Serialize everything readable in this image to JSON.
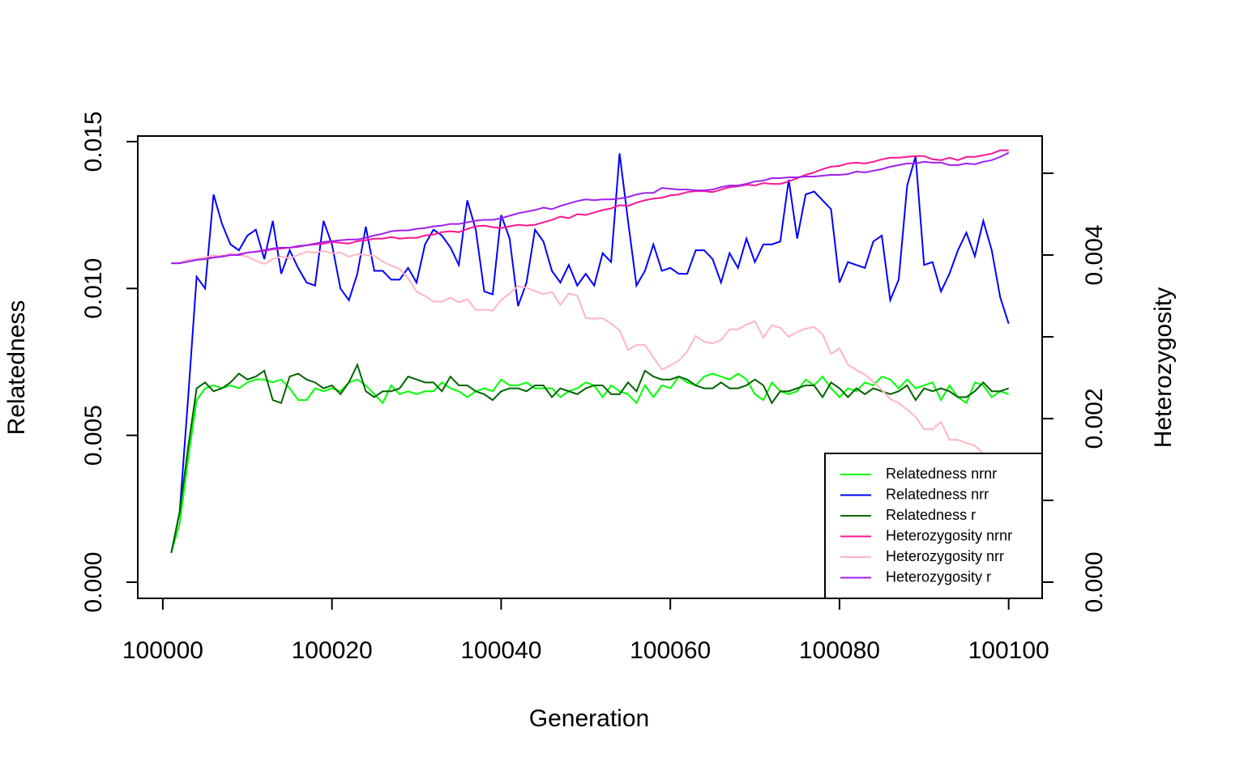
{
  "chart_data": {
    "type": "line",
    "x_label": "Generation",
    "y_label": "Relatedness",
    "y2_label": "Heterozygosity",
    "x": [
      100001,
      100002,
      100003,
      100004,
      100005,
      100006,
      100007,
      100008,
      100009,
      100010,
      100011,
      100012,
      100013,
      100014,
      100015,
      100016,
      100017,
      100018,
      100019,
      100020,
      100021,
      100022,
      100023,
      100024,
      100025,
      100026,
      100027,
      100028,
      100029,
      100030,
      100031,
      100032,
      100033,
      100034,
      100035,
      100036,
      100037,
      100038,
      100039,
      100040,
      100041,
      100042,
      100043,
      100044,
      100045,
      100046,
      100047,
      100048,
      100049,
      100050,
      100051,
      100052,
      100053,
      100054,
      100055,
      100056,
      100057,
      100058,
      100059,
      100060,
      100061,
      100062,
      100063,
      100064,
      100065,
      100066,
      100067,
      100068,
      100069,
      100070,
      100071,
      100072,
      100073,
      100074,
      100075,
      100076,
      100077,
      100078,
      100079,
      100080,
      100081,
      100082,
      100083,
      100084,
      100085,
      100086,
      100087,
      100088,
      100089,
      100090,
      100091,
      100092,
      100093,
      100094,
      100095,
      100096,
      100097,
      100098,
      100099,
      100100
    ],
    "xlim": [
      99997.04,
      100103.96
    ],
    "xticks": [
      100000,
      100020,
      100040,
      100060,
      100080,
      100100
    ],
    "ylim": [
      -0.00055,
      0.01519
    ],
    "yticks": [
      {
        "value": 0,
        "label": "0.000"
      },
      {
        "value": 0.005,
        "label": "0.005"
      },
      {
        "value": 0.01,
        "label": "0.010"
      },
      {
        "value": 0.015,
        "label": "0.015"
      }
    ],
    "y2lim": [
      -0.000198,
      0.005455
    ],
    "y2ticks": [
      {
        "value": 0,
        "label": "0.000"
      },
      {
        "value": 0.002,
        "label": "0.002"
      },
      {
        "value": 0.004,
        "label": "0.004"
      }
    ],
    "y2minor_ticks": [
      0.001,
      0.003,
      0.005
    ],
    "legend": "bottom-right",
    "series": [
      {
        "name": "Relatedness nrnr",
        "color": "#00ff00",
        "values": [
          0.001,
          0.002,
          0.0042,
          0.0062,
          0.0066,
          0.0067,
          0.0066,
          0.0067,
          0.0066,
          0.0068,
          0.0069,
          0.0069,
          0.0068,
          0.0069,
          0.0066,
          0.0062,
          0.0062,
          0.0066,
          0.0065,
          0.0066,
          0.0065,
          0.0068,
          0.0069,
          0.0067,
          0.0064,
          0.0061,
          0.0067,
          0.0064,
          0.0065,
          0.0064,
          0.0065,
          0.0065,
          0.0068,
          0.0066,
          0.0065,
          0.0063,
          0.0065,
          0.0066,
          0.0065,
          0.0069,
          0.0067,
          0.0067,
          0.0068,
          0.0066,
          0.0066,
          0.0066,
          0.0063,
          0.0065,
          0.0066,
          0.0068,
          0.0067,
          0.0063,
          0.0067,
          0.0065,
          0.0064,
          0.0061,
          0.0067,
          0.0063,
          0.0067,
          0.0066,
          0.007,
          0.0068,
          0.0067,
          0.007,
          0.0071,
          0.007,
          0.0069,
          0.0071,
          0.0069,
          0.0064,
          0.0062,
          0.0068,
          0.0065,
          0.0064,
          0.0065,
          0.0069,
          0.0067,
          0.007,
          0.0066,
          0.0063,
          0.0066,
          0.0065,
          0.0068,
          0.0067,
          0.007,
          0.0069,
          0.0066,
          0.0069,
          0.0066,
          0.0067,
          0.0068,
          0.0062,
          0.0067,
          0.0063,
          0.0061,
          0.0068,
          0.0067,
          0.0063,
          0.0065,
          0.0064
        ]
      },
      {
        "name": "Relatedness nrr",
        "color": "#0000ff",
        "values": [
          0.001,
          0.0024,
          0.0063,
          0.0104,
          0.01,
          0.0132,
          0.0122,
          0.0115,
          0.0113,
          0.0118,
          0.012,
          0.011,
          0.0123,
          0.0105,
          0.0113,
          0.0107,
          0.0102,
          0.0101,
          0.0123,
          0.0115,
          0.01,
          0.0096,
          0.0105,
          0.0121,
          0.0106,
          0.0106,
          0.0103,
          0.0103,
          0.0107,
          0.0102,
          0.0115,
          0.012,
          0.0118,
          0.0114,
          0.0108,
          0.013,
          0.012,
          0.0099,
          0.0098,
          0.0125,
          0.0117,
          0.0094,
          0.0102,
          0.012,
          0.0116,
          0.0106,
          0.0102,
          0.0108,
          0.0101,
          0.0105,
          0.0101,
          0.0112,
          0.0109,
          0.0146,
          0.0123,
          0.0101,
          0.0106,
          0.0115,
          0.0106,
          0.0107,
          0.0105,
          0.0105,
          0.0113,
          0.0113,
          0.011,
          0.0102,
          0.0112,
          0.0107,
          0.0117,
          0.0109,
          0.0115,
          0.0115,
          0.0116,
          0.0137,
          0.0117,
          0.0132,
          0.0133,
          0.013,
          0.0127,
          0.0102,
          0.0109,
          0.0108,
          0.0107,
          0.0116,
          0.0118,
          0.0096,
          0.0103,
          0.0135,
          0.0145,
          0.0108,
          0.0109,
          0.0099,
          0.0105,
          0.0113,
          0.0119,
          0.0111,
          0.0123,
          0.0113,
          0.0097,
          0.0088
        ]
      },
      {
        "name": "Relatedness r",
        "color": "#006400",
        "values": [
          0.001,
          0.0024,
          0.0046,
          0.0066,
          0.0068,
          0.0065,
          0.0066,
          0.0068,
          0.0071,
          0.0069,
          0.007,
          0.0072,
          0.0062,
          0.0061,
          0.007,
          0.0071,
          0.0069,
          0.0068,
          0.0066,
          0.0067,
          0.0064,
          0.0068,
          0.0074,
          0.0065,
          0.0063,
          0.0065,
          0.0065,
          0.0066,
          0.007,
          0.0069,
          0.0068,
          0.0068,
          0.0065,
          0.007,
          0.0067,
          0.0067,
          0.0065,
          0.0064,
          0.0062,
          0.0065,
          0.0066,
          0.0066,
          0.0065,
          0.0067,
          0.0067,
          0.0063,
          0.0066,
          0.0065,
          0.0064,
          0.0066,
          0.0067,
          0.0067,
          0.0064,
          0.0064,
          0.0068,
          0.0065,
          0.0072,
          0.007,
          0.0069,
          0.0069,
          0.007,
          0.0069,
          0.0067,
          0.0066,
          0.0066,
          0.0068,
          0.0066,
          0.0066,
          0.0067,
          0.0069,
          0.0067,
          0.0061,
          0.0065,
          0.0065,
          0.0066,
          0.0067,
          0.0067,
          0.0063,
          0.0068,
          0.0066,
          0.0063,
          0.0066,
          0.0064,
          0.0066,
          0.0065,
          0.0064,
          0.0065,
          0.0067,
          0.0062,
          0.0066,
          0.0065,
          0.0066,
          0.0065,
          0.0063,
          0.0063,
          0.0065,
          0.0068,
          0.0065,
          0.0065,
          0.0066
        ]
      },
      {
        "name": "Heterozygosity nrnr",
        "color": "#ff1493",
        "axis": "y2",
        "values": [
          0.0039,
          0.0039,
          0.00392,
          0.00394,
          0.00396,
          0.00397,
          0.00399,
          0.004,
          0.00401,
          0.00403,
          0.00404,
          0.00405,
          0.00407,
          0.00408,
          0.00409,
          0.0041,
          0.00412,
          0.00413,
          0.00414,
          0.00416,
          0.00415,
          0.00414,
          0.00417,
          0.00418,
          0.0042,
          0.0042,
          0.00422,
          0.0042,
          0.00421,
          0.00421,
          0.00424,
          0.00425,
          0.00428,
          0.00429,
          0.00428,
          0.00432,
          0.00435,
          0.00436,
          0.00434,
          0.00433,
          0.00435,
          0.00437,
          0.00436,
          0.00437,
          0.0044,
          0.00443,
          0.00447,
          0.00445,
          0.0045,
          0.00449,
          0.00452,
          0.00455,
          0.00457,
          0.00461,
          0.0046,
          0.00464,
          0.00467,
          0.00469,
          0.0047,
          0.00473,
          0.00474,
          0.00477,
          0.00478,
          0.00478,
          0.00477,
          0.0048,
          0.00483,
          0.00484,
          0.00486,
          0.00485,
          0.00488,
          0.00487,
          0.00487,
          0.0049,
          0.00494,
          0.00498,
          0.00501,
          0.00505,
          0.00508,
          0.00509,
          0.00512,
          0.00513,
          0.00512,
          0.00514,
          0.00517,
          0.00519,
          0.00519,
          0.0052,
          0.00521,
          0.00521,
          0.00517,
          0.00516,
          0.00519,
          0.00516,
          0.0052,
          0.0052,
          0.00522,
          0.00524,
          0.00528,
          0.00528
        ]
      },
      {
        "name": "Heterozygosity nrr",
        "color": "#ffb6c1",
        "axis": "y2",
        "values": [
          0.0039,
          0.00391,
          0.00394,
          0.00395,
          0.00397,
          0.004,
          0.00398,
          0.00402,
          0.004,
          0.00398,
          0.00393,
          0.00389,
          0.00395,
          0.00398,
          0.00396,
          0.004,
          0.00404,
          0.00403,
          0.00405,
          0.00402,
          0.00403,
          0.00398,
          0.00401,
          0.004,
          0.00399,
          0.00392,
          0.00387,
          0.00383,
          0.00372,
          0.00355,
          0.0035,
          0.00343,
          0.00343,
          0.00348,
          0.00342,
          0.00346,
          0.00333,
          0.00333,
          0.00332,
          0.00345,
          0.00353,
          0.00362,
          0.0036,
          0.00356,
          0.00352,
          0.00355,
          0.00339,
          0.00353,
          0.0035,
          0.00323,
          0.00322,
          0.00323,
          0.00316,
          0.00308,
          0.00284,
          0.0029,
          0.0029,
          0.00275,
          0.0026,
          0.00265,
          0.00271,
          0.00282,
          0.00301,
          0.00294,
          0.00292,
          0.00296,
          0.00309,
          0.00309,
          0.00315,
          0.00319,
          0.00299,
          0.00314,
          0.00311,
          0.003,
          0.00306,
          0.0031,
          0.00312,
          0.00303,
          0.00279,
          0.00286,
          0.00266,
          0.00259,
          0.00254,
          0.00245,
          0.00235,
          0.00224,
          0.00219,
          0.00211,
          0.00202,
          0.00187,
          0.00187,
          0.00196,
          0.00174,
          0.00174,
          0.0017,
          0.00167,
          0.00157,
          0.0015,
          0.00145,
          0.0014
        ]
      },
      {
        "name": "Heterozygosity r",
        "color": "#a020f0",
        "axis": "y2",
        "values": [
          0.0039,
          0.0039,
          0.00392,
          0.00394,
          0.00395,
          0.00397,
          0.00398,
          0.004,
          0.004,
          0.00403,
          0.00404,
          0.00406,
          0.00408,
          0.00409,
          0.00409,
          0.00411,
          0.00412,
          0.00414,
          0.00416,
          0.00417,
          0.00418,
          0.00419,
          0.00419,
          0.00421,
          0.00424,
          0.00426,
          0.00429,
          0.0043,
          0.0043,
          0.00432,
          0.00433,
          0.00435,
          0.00436,
          0.00438,
          0.00438,
          0.0044,
          0.00442,
          0.00443,
          0.00443,
          0.00445,
          0.00448,
          0.00451,
          0.00453,
          0.00455,
          0.00458,
          0.00456,
          0.0046,
          0.00463,
          0.00466,
          0.00468,
          0.00467,
          0.00468,
          0.00468,
          0.00469,
          0.00471,
          0.00474,
          0.00476,
          0.00476,
          0.00482,
          0.00481,
          0.0048,
          0.0048,
          0.00479,
          0.00479,
          0.0048,
          0.00483,
          0.00485,
          0.00485,
          0.00487,
          0.0049,
          0.00491,
          0.00494,
          0.00494,
          0.00495,
          0.00495,
          0.00496,
          0.00496,
          0.00497,
          0.00498,
          0.00498,
          0.00499,
          0.00502,
          0.00501,
          0.00503,
          0.00505,
          0.00508,
          0.0051,
          0.00512,
          0.00512,
          0.00514,
          0.00513,
          0.00513,
          0.0051,
          0.0051,
          0.00512,
          0.00511,
          0.00514,
          0.00516,
          0.0052,
          0.00525
        ]
      }
    ]
  }
}
